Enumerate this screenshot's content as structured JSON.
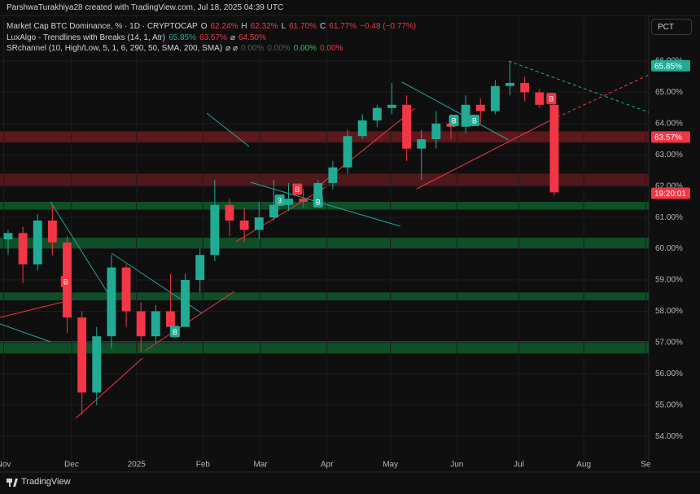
{
  "header": {
    "attribution": "ParshwaTurakhiya28 created with TradingView.com, Jul 18, 2025 04:39 UTC",
    "button": "PCT",
    "brand": "TradingView",
    "legend": [
      [
        {
          "text": "Market Cap BTC Dominance, % · 1D · CRYPTOCAP",
          "color": "#d1d4dc"
        },
        {
          "text": "O",
          "color": "#d1d4dc"
        },
        {
          "text": "62.24%",
          "color": "#f23645"
        },
        {
          "text": "H",
          "color": "#d1d4dc"
        },
        {
          "text": "62.32%",
          "color": "#f23645"
        },
        {
          "text": "L",
          "color": "#d1d4dc"
        },
        {
          "text": "61.70%",
          "color": "#f23645"
        },
        {
          "text": "C",
          "color": "#d1d4dc"
        },
        {
          "text": "61.77%",
          "color": "#f23645"
        },
        {
          "text": "−0.48 (−0.77%)",
          "color": "#f23645"
        }
      ],
      [
        {
          "text": "LuxAlgo - Trendlines with Breaks (14, 1, Atr)",
          "color": "#d1d4dc"
        },
        {
          "text": "65.85%",
          "color": "#22ab94"
        },
        {
          "text": "63.57%",
          "color": "#f23645"
        },
        {
          "text": "⌀",
          "color": "#d1d4dc"
        },
        {
          "text": "64.50%",
          "color": "#f23645"
        }
      ],
      [
        {
          "text": "SRchannel (10, High/Low, 5, 1, 6, 290, 50, SMA, 200, SMA)",
          "color": "#d1d4dc"
        },
        {
          "text": "⌀ ⌀",
          "color": "#d1d4dc"
        },
        {
          "text": "0.00%",
          "color": "#555"
        },
        {
          "text": "0.00%",
          "color": "#555"
        },
        {
          "text": "0.00%",
          "color": "#22c55e"
        },
        {
          "text": "0.00%",
          "color": "#f23645"
        }
      ]
    ]
  },
  "chart_data": {
    "type": "candlestick",
    "x": [
      0,
      1,
      2,
      3,
      4,
      5,
      6,
      7,
      8,
      9,
      10,
      11,
      12,
      13,
      14,
      15,
      16,
      17,
      18,
      19,
      20,
      21,
      22,
      23,
      24,
      25,
      26,
      27,
      28,
      29,
      30,
      31,
      32,
      33,
      34,
      35,
      36,
      37
    ],
    "open": [
      60.3,
      60.5,
      59.5,
      60.9,
      60.2,
      57.8,
      55.4,
      57.2,
      59.4,
      58.0,
      57.2,
      58.0,
      57.5,
      59.0,
      59.8,
      61.4,
      60.9,
      60.6,
      61.0,
      61.4,
      61.6,
      61.5,
      62.1,
      62.6,
      63.6,
      64.1,
      64.5,
      64.6,
      63.2,
      63.5,
      64.0,
      63.9,
      64.6,
      64.4,
      65.2,
      65.3,
      65.0,
      64.6
    ],
    "high": [
      60.6,
      60.7,
      61.1,
      61.4,
      60.4,
      58.0,
      57.5,
      59.8,
      59.5,
      58.3,
      58.2,
      59.2,
      59.2,
      60.0,
      62.2,
      61.6,
      61.3,
      61.5,
      62.2,
      62.1,
      61.9,
      62.2,
      62.8,
      63.8,
      64.3,
      64.6,
      65.3,
      64.9,
      63.8,
      64.4,
      64.3,
      64.9,
      64.8,
      65.4,
      66.0,
      65.5,
      65.1,
      64.8
    ],
    "low": [
      59.8,
      58.9,
      59.3,
      59.8,
      57.3,
      54.7,
      55.0,
      56.8,
      57.5,
      56.7,
      57.0,
      57.2,
      57.5,
      58.6,
      59.6,
      60.4,
      60.2,
      60.3,
      60.9,
      61.2,
      61.3,
      61.4,
      61.9,
      62.4,
      63.5,
      63.9,
      64.3,
      62.8,
      62.2,
      63.2,
      63.5,
      63.7,
      64.0,
      64.3,
      64.9,
      64.7,
      64.5,
      61.7
    ],
    "close": [
      60.5,
      59.5,
      60.9,
      60.2,
      57.8,
      55.4,
      57.2,
      59.4,
      58.0,
      57.2,
      58.0,
      57.5,
      59.0,
      59.8,
      61.4,
      60.9,
      60.6,
      61.0,
      61.4,
      61.6,
      61.5,
      62.1,
      62.6,
      63.6,
      64.1,
      64.5,
      64.6,
      63.2,
      63.5,
      64.0,
      63.9,
      64.6,
      64.4,
      65.2,
      65.3,
      65.0,
      64.6,
      61.8
    ],
    "up_color": "#22ab94",
    "down_color": "#f23645",
    "xlim": [
      -0.55,
      43.4
    ],
    "xticks": [
      {
        "value": -0.3,
        "label": "Nov"
      },
      {
        "value": 4.3,
        "label": "Dec"
      },
      {
        "value": 8.7,
        "label": "2025"
      },
      {
        "value": 13.2,
        "label": "Feb"
      },
      {
        "value": 17.1,
        "label": "Mar"
      },
      {
        "value": 21.6,
        "label": "Apr"
      },
      {
        "value": 25.9,
        "label": "May"
      },
      {
        "value": 30.4,
        "label": "Jun"
      },
      {
        "value": 34.6,
        "label": "Jul"
      },
      {
        "value": 39.0,
        "label": "Aug"
      },
      {
        "value": 43.2,
        "label": "Se"
      }
    ],
    "ylim": [
      53.51,
      66.26
    ],
    "yticks": [
      {
        "value": 54,
        "label": "54.00%"
      },
      {
        "value": 55,
        "label": "55.00%"
      },
      {
        "value": 56,
        "label": "56.00%"
      },
      {
        "value": 57,
        "label": "57.00%"
      },
      {
        "value": 58,
        "label": "58.00%"
      },
      {
        "value": 59,
        "label": "59.00%"
      },
      {
        "value": 60,
        "label": "60.00%"
      },
      {
        "value": 61,
        "label": "61.00%"
      },
      {
        "value": 62,
        "label": "62.00%"
      },
      {
        "value": 63,
        "label": "63.00%"
      },
      {
        "value": 64,
        "label": "64.00%"
      },
      {
        "value": 65,
        "label": "65.00%"
      },
      {
        "value": 66,
        "label": "66.00%"
      }
    ],
    "zones": [
      {
        "low": 63.4,
        "high": 63.75,
        "color": "#6b1a1d"
      },
      {
        "low": 62.0,
        "high": 62.4,
        "color": "#5a1a1c"
      },
      {
        "low": 61.25,
        "high": 61.5,
        "color": "#0f5a2c"
      },
      {
        "low": 60.0,
        "high": 60.35,
        "color": "#0f5a2c"
      },
      {
        "low": 58.35,
        "high": 58.6,
        "color": "#0f5a2c"
      },
      {
        "low": 56.65,
        "high": 57.05,
        "color": "#0f5a2c"
      }
    ],
    "price_labels": [
      {
        "value": 65.85,
        "label": "65.85%",
        "color": "#22ab94"
      },
      {
        "value": 63.57,
        "label": "63.57%",
        "color": "#f23645"
      },
      {
        "value": 61.77,
        "label": "19:20:01",
        "color": "#f23645"
      }
    ],
    "signals": [
      {
        "x": 3.9,
        "y": 58.95,
        "label": "B",
        "color": "#f23645"
      },
      {
        "x": 11.3,
        "y": 57.35,
        "label": "B",
        "color": "#22ab94"
      },
      {
        "x": 18.4,
        "y": 61.55,
        "label": "3",
        "color": "#22ab94"
      },
      {
        "x": 19.6,
        "y": 61.9,
        "label": "B",
        "color": "#f23645"
      },
      {
        "x": 21.0,
        "y": 61.5,
        "label": "B",
        "color": "#22ab94"
      },
      {
        "x": 30.2,
        "y": 64.1,
        "label": "B",
        "color": "#22ab94"
      },
      {
        "x": 31.6,
        "y": 64.1,
        "label": "B",
        "color": "#22ab94"
      },
      {
        "x": 36.8,
        "y": 64.8,
        "label": "B",
        "color": "#f23645"
      }
    ]
  }
}
